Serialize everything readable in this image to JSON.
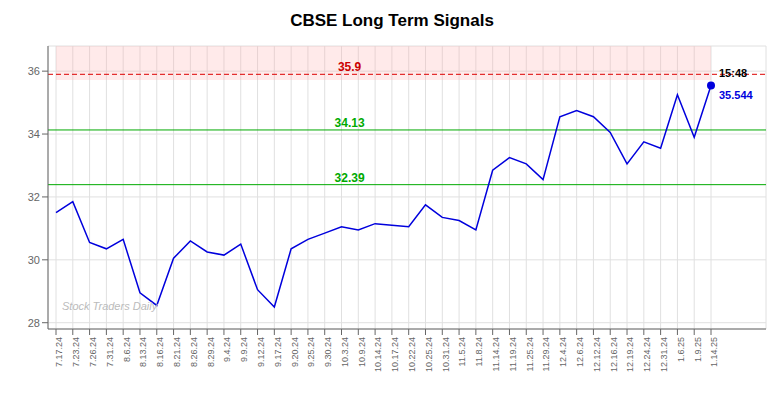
{
  "chart_data": {
    "type": "line",
    "title": "CBSE Long Term Signals",
    "categories": [
      "7.17.24",
      "7.23.24",
      "7.26.24",
      "7.31.24",
      "8.6.24",
      "8.13.24",
      "8.16.24",
      "8.21.24",
      "8.26.24",
      "8.29.24",
      "9.4.24",
      "9.9.24",
      "9.12.24",
      "9.17.24",
      "9.20.24",
      "9.25.24",
      "9.30.24",
      "10.3.24",
      "10.9.24",
      "10.14.24",
      "10.17.24",
      "10.22.24",
      "10.25.24",
      "10.31.24",
      "11.5.24",
      "11.8.24",
      "11.14.24",
      "11.19.24",
      "11.25.24",
      "11.29.24",
      "12.4.24",
      "12.6.24",
      "12.12.24",
      "12.16.24",
      "12.19.24",
      "12.24.24",
      "12.31.24",
      "1.6.25",
      "1.9.25",
      "1.14.25"
    ],
    "values": [
      31.5,
      31.85,
      30.55,
      30.35,
      30.65,
      28.95,
      28.55,
      30.05,
      30.6,
      30.25,
      30.15,
      30.5,
      29.05,
      28.5,
      30.35,
      30.65,
      30.85,
      31.05,
      30.95,
      31.15,
      31.1,
      31.05,
      31.75,
      31.35,
      31.25,
      30.95,
      32.85,
      33.25,
      33.05,
      32.55,
      34.55,
      34.75,
      34.55,
      34.05,
      33.05,
      33.75,
      33.55,
      35.25,
      33.9,
      35.544
    ],
    "color": "#0000dd",
    "ylim": [
      27.8,
      36.8
    ],
    "yticks": [
      28,
      30,
      32,
      34,
      36
    ],
    "grid": true,
    "hlines": [
      {
        "value": 35.9,
        "label": "35.9",
        "color": "#dd0000",
        "label_color": "#cc0000",
        "line_style": "dashed"
      },
      {
        "value": 34.13,
        "label": "34.13",
        "color": "#00aa00",
        "label_color": "#00aa00",
        "line_style": "solid"
      },
      {
        "value": 32.39,
        "label": "32.39",
        "color": "#00aa00",
        "label_color": "#00aa00",
        "line_style": "solid"
      }
    ],
    "bands": [
      {
        "from": 35.72,
        "to": 36.8,
        "color": "#ffaaaa"
      }
    ],
    "last_point": {
      "time_label": "15:48",
      "price_label": "35.544",
      "color": "#0000dd"
    },
    "watermark": {
      "text": "Stock Traders Daily",
      "color": "#bbbbbb"
    }
  }
}
